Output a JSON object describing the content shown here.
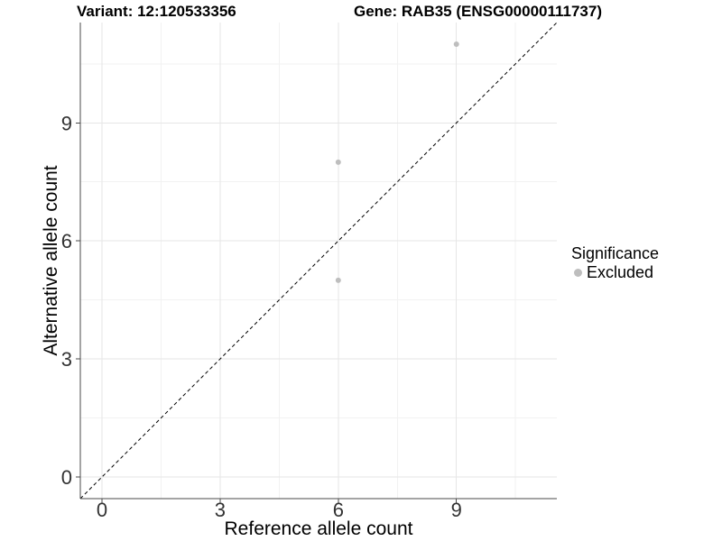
{
  "title": {
    "variant": "Variant: 12:120533356",
    "gene": "Gene: RAB35 (ENSG00000111737)"
  },
  "chart_data": {
    "type": "scatter",
    "title": "Variant: 12:120533356        Gene: RAB35 (ENSG00000111737)",
    "xlabel": "Reference allele count",
    "ylabel": "Alternative allele count",
    "xlim": [
      -0.55,
      11.55
    ],
    "ylim": [
      -0.55,
      11.55
    ],
    "x_ticks": [
      0,
      3,
      6,
      9
    ],
    "y_ticks": [
      0,
      3,
      6,
      9
    ],
    "x_minor_ticks": [
      1.5,
      4.5,
      7.5,
      10.5
    ],
    "y_minor_ticks": [
      1.5,
      4.5,
      7.5,
      10.5
    ],
    "grid": "major and minor gridlines, very light grey on white panel",
    "series": [
      {
        "name": "Excluded",
        "color": "#bebebe",
        "points": [
          {
            "x": 6,
            "y": 8
          },
          {
            "x": 6,
            "y": 5
          },
          {
            "x": 9,
            "y": 11
          }
        ]
      }
    ],
    "reference_line": {
      "kind": "identity y=x",
      "style": "dashed",
      "color": "#000000"
    },
    "legend": {
      "title": "Significance",
      "position": "right",
      "entries": [
        {
          "label": "Excluded",
          "color": "#bebebe"
        }
      ]
    }
  },
  "colors": {
    "background": "#ffffff",
    "point": "#bebebe",
    "grid_major": "#e6e6e6",
    "grid_minor": "#f2f2f2",
    "axis_line": "#4a4a4a",
    "tick_label": "#333333",
    "title_text": "#000000",
    "dashed_line": "#000000"
  }
}
